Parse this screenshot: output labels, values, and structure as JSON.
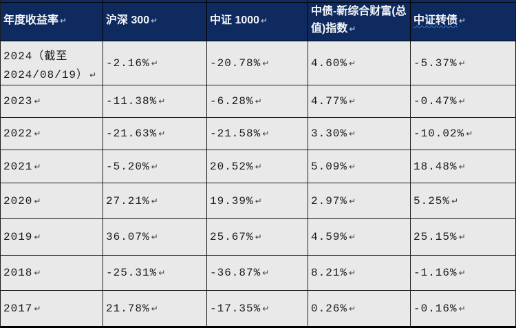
{
  "colors": {
    "header_bg": "#0e2a5e",
    "header_text": "#f4f6fa",
    "row_bg": "#e9e9e9",
    "grid_line": "#1c1c1c",
    "bottom_border": "#000000",
    "spellcheck_squiggle": "#3a7bd5",
    "paragraph_mark_body": "#3f3f3f",
    "paragraph_mark_header": "#aab4cc"
  },
  "marks": {
    "return": "↵"
  },
  "table": {
    "columns": [
      "年度收益率",
      "沪深 300",
      "中证 1000",
      "中债-新综合财富(总值)指数",
      "中证转债"
    ],
    "rows": [
      {
        "year_lines": [
          "2024（截至",
          "2024/08/19）"
        ],
        "values": [
          "-2.16%",
          "-20.78%",
          "4.60%",
          "-5.37%"
        ]
      },
      {
        "year_lines": [
          "2023"
        ],
        "values": [
          "-11.38%",
          "-6.28%",
          "4.77%",
          "-0.47%"
        ]
      },
      {
        "year_lines": [
          "2022"
        ],
        "values": [
          "-21.63%",
          "-21.58%",
          "3.30%",
          "-10.02%"
        ]
      },
      {
        "year_lines": [
          "2021"
        ],
        "values": [
          "-5.20%",
          "20.52%",
          "5.09%",
          "18.48%"
        ]
      },
      {
        "year_lines": [
          "2020"
        ],
        "values": [
          "27.21%",
          "19.39%",
          "2.97%",
          "5.25%"
        ]
      },
      {
        "year_lines": [
          "2019"
        ],
        "values": [
          "36.07%",
          "25.67%",
          "4.59%",
          "25.15%"
        ]
      },
      {
        "year_lines": [
          "2018"
        ],
        "values": [
          "-25.31%",
          "-36.87%",
          "8.21%",
          "-1.16%"
        ]
      },
      {
        "year_lines": [
          "2017"
        ],
        "values": [
          "21.78%",
          "-17.35%",
          "0.26%",
          "-0.16%"
        ]
      }
    ]
  }
}
